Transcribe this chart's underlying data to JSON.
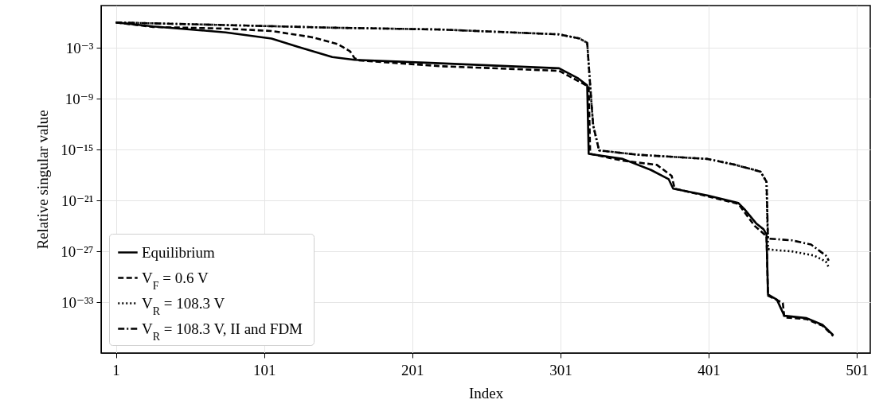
{
  "chart_data": {
    "type": "line",
    "xlabel": "Index",
    "ylabel": "Relative singular value",
    "xlim": [
      -9,
      510
    ],
    "xticks": [
      1,
      101,
      201,
      301,
      401,
      501
    ],
    "ylim": [
      1e-39,
      100
    ],
    "log": true,
    "yticks": [
      {
        "value": 0.001,
        "label": "10⁻³"
      },
      {
        "value": 1e-09,
        "label": "10⁻⁹"
      },
      {
        "value": 1e-15,
        "label": "10⁻¹⁵"
      },
      {
        "value": 1e-21,
        "label": "10⁻²¹"
      },
      {
        "value": 1e-27,
        "label": "10⁻²⁷"
      },
      {
        "value": 1e-33,
        "label": "10⁻³³"
      }
    ],
    "grid": true,
    "legend": "bottom left",
    "marker": "none",
    "series": [
      {
        "name": "Equilibrium",
        "color": "#000000",
        "line_style": "solid",
        "x": [
          1,
          26,
          75,
          106,
          124,
          147,
          162,
          210,
          300,
          313,
          319,
          320,
          343,
          362,
          374,
          377,
          400,
          421,
          425,
          433,
          438,
          440,
          441,
          447,
          452,
          467,
          478,
          485
        ],
        "values": [
          1,
          0.34,
          0.069,
          0.013,
          0.0013,
          8.5e-05,
          4e-05,
          1.8e-05,
          4e-06,
          2.5e-07,
          4e-08,
          3.2e-16,
          8e-17,
          4e-18,
          3.2e-19,
          2.5e-20,
          4e-21,
          5e-22,
          1e-22,
          2e-24,
          4e-25,
          1e-25,
          8e-33,
          2e-33,
          2.5e-35,
          1.3e-35,
          2e-36,
          1.3e-37
        ]
      },
      {
        "name": "V$_{F}$ = 0.6 V",
        "color": "#000000",
        "line_style": "dashed",
        "x": [
          1,
          26,
          75,
          106,
          133,
          151,
          159,
          162,
          165,
          220,
          300,
          315,
          320,
          321,
          343,
          366,
          376,
          378,
          400,
          421,
          432,
          440,
          441,
          451,
          452,
          467,
          478,
          485
        ],
        "values": [
          1,
          0.3,
          0.19,
          0.1,
          0.019,
          0.0027,
          0.0004,
          6.3e-05,
          3.4e-05,
          7e-06,
          2e-06,
          8e-08,
          2.5e-08,
          3.2e-16,
          5e-17,
          1.6e-17,
          8e-19,
          2.5e-20,
          3.2e-21,
          4e-22,
          1e-24,
          6e-26,
          6e-33,
          8e-34,
          1.6e-35,
          1e-35,
          1.6e-36,
          1e-37
        ]
      },
      {
        "name": "V$_{R}$ = 108.3 V",
        "color": "#000000",
        "line_style": "dotted",
        "x": [
          1,
          26,
          75,
          149,
          220,
          300,
          314,
          319,
          321,
          323,
          327,
          353,
          400,
          419,
          436,
          440,
          441,
          442,
          457,
          472,
          480,
          482
        ],
        "values": [
          1,
          0.8,
          0.5,
          0.24,
          0.15,
          0.04,
          0.013,
          0.004,
          4e-08,
          8e-13,
          8e-16,
          2.5e-16,
          8e-17,
          1.6e-17,
          2.5e-18,
          1.6e-19,
          2e-27,
          1.6e-27,
          1e-27,
          3.2e-28,
          6.3e-29,
          1.3e-29
        ]
      },
      {
        "name": "V$_{R}$ = 108.3 V, II and FDM",
        "color": "#000000",
        "line_style": "dashdot",
        "x": [
          1,
          26,
          75,
          149,
          220,
          300,
          314,
          319,
          321,
          323,
          327,
          353,
          400,
          419,
          436,
          440,
          441,
          457,
          470,
          480,
          482
        ],
        "values": [
          1,
          0.8,
          0.5,
          0.24,
          0.15,
          0.04,
          0.013,
          0.004,
          4e-08,
          8e-13,
          8e-16,
          2.5e-16,
          8e-17,
          1.6e-17,
          2.5e-18,
          1.6e-19,
          3.2e-26,
          2e-26,
          6.3e-27,
          3.2e-28,
          8e-29
        ]
      }
    ]
  }
}
